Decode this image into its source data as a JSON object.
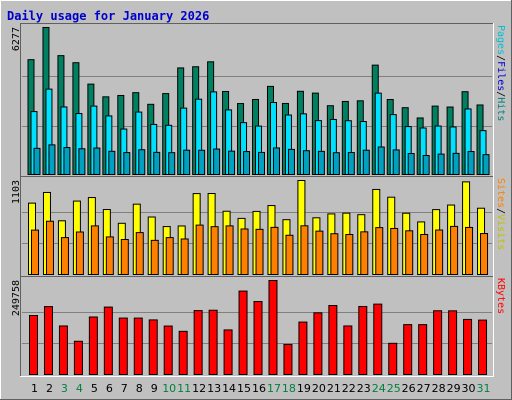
{
  "chart_data": {
    "type": "bar",
    "title": "Daily usage for January 2026",
    "categories": [
      "1",
      "2",
      "3",
      "4",
      "5",
      "6",
      "7",
      "8",
      "9",
      "10",
      "11",
      "12",
      "13",
      "14",
      "15",
      "16",
      "17",
      "18",
      "19",
      "20",
      "21",
      "22",
      "23",
      "24",
      "25",
      "26",
      "27",
      "28",
      "29",
      "30",
      "31"
    ],
    "weekend_days": [
      "3",
      "4",
      "10",
      "11",
      "17",
      "18",
      "24",
      "25",
      "31"
    ],
    "colors": {
      "background": "#c0c0c0",
      "title": "#0000cc",
      "weekday_label": "#000000",
      "weekend_label": "#008040",
      "hits": "#008060",
      "files": "#00e0ff",
      "pages": "#00a0c0",
      "visits": "#ffff00",
      "sites": "#ff8000",
      "kbytes": "#ff0000"
    },
    "panels": [
      {
        "id": "hits-panel",
        "max_label": "6277",
        "ylim": [
          0,
          6277
        ],
        "legend": [
          {
            "label": "Hits",
            "color": "#008080"
          },
          {
            "label": "/",
            "color": "#000000"
          },
          {
            "label": "Files",
            "color": "#0000cc"
          },
          {
            "label": "/",
            "color": "#000000"
          },
          {
            "label": "Pages",
            "color": "#00c0d0"
          }
        ],
        "series": [
          {
            "key": "hits",
            "values": [
              4913,
              6277,
              5084,
              4784,
              3876,
              3337,
              3394,
              3513,
              3019,
              3474,
              4563,
              4613,
              4822,
              3563,
              3052,
              3224,
              3779,
              3055,
              3571,
              3494,
              2960,
              3140,
              3168,
              4681,
              3223,
              2876,
              2441,
              2943,
              2904,
              3554,
              2991
            ]
          },
          {
            "key": "files",
            "values": [
              2710,
              3664,
              2908,
              2628,
              2943,
              2527,
              1970,
              2690,
              2165,
              2128,
              2857,
              3236,
              3546,
              2782,
              2241,
              2096,
              3096,
              2565,
              2616,
              2328,
              2377,
              2323,
              2290,
              3493,
              2581,
              2075,
              2014,
              2098,
              2059,
              2822,
              1902
            ]
          },
          {
            "key": "pages",
            "values": [
              1152,
              1300,
              1185,
              1134,
              1165,
              1026,
              972,
              1093,
              981,
              969,
              1073,
              1070,
              1122,
              1033,
              1015,
              979,
              1169,
              1107,
              1052,
              1024,
              967,
              974,
              1072,
              1209,
              1085,
              932,
              848,
              907,
              939,
              1016,
              884
            ]
          }
        ]
      },
      {
        "id": "visits-panel",
        "max_label": "1103",
        "ylim": [
          0,
          1103
        ],
        "legend": [
          {
            "label": "Visits",
            "color": "#c0c000"
          },
          {
            "label": "/",
            "color": "#000000"
          },
          {
            "label": "Sites",
            "color": "#ff8000"
          }
        ],
        "series": [
          {
            "key": "visits",
            "values": [
              840,
              964,
              635,
              864,
              905,
              766,
              606,
              828,
              679,
              568,
              575,
              951,
              952,
              746,
              663,
              744,
              812,
              648,
              1103,
              670,
              715,
              724,
              706,
              999,
              909,
              723,
              622,
              765,
              818,
              1087,
              781
            ]
          },
          {
            "key": "sites",
            "values": [
              527,
              630,
              440,
              505,
              576,
              448,
              418,
              498,
              408,
              440,
              424,
              585,
              567,
              576,
              540,
              536,
              559,
              467,
              577,
              515,
              485,
              476,
              507,
              556,
              546,
              519,
              476,
              528,
              570,
              558,
              487
            ]
          }
        ]
      },
      {
        "id": "kbytes-panel",
        "max_label": "249758",
        "ylim": [
          0,
          249758
        ],
        "legend": [
          {
            "label": "KBytes",
            "color": "#ff0000"
          }
        ],
        "series": [
          {
            "key": "kbytes",
            "values": [
              157744,
              181144,
              130204,
              89952,
              153800,
              179844,
              150984,
              150928,
              146188,
              130004,
              116108,
              170636,
              171560,
              119836,
              221936,
              194500,
              249758,
              81564,
              140468,
              164736,
              184020,
              130244,
              181468,
              187644,
              84604,
              133768,
              133732,
              170216,
              170068,
              147436,
              145628
            ]
          }
        ]
      }
    ]
  }
}
